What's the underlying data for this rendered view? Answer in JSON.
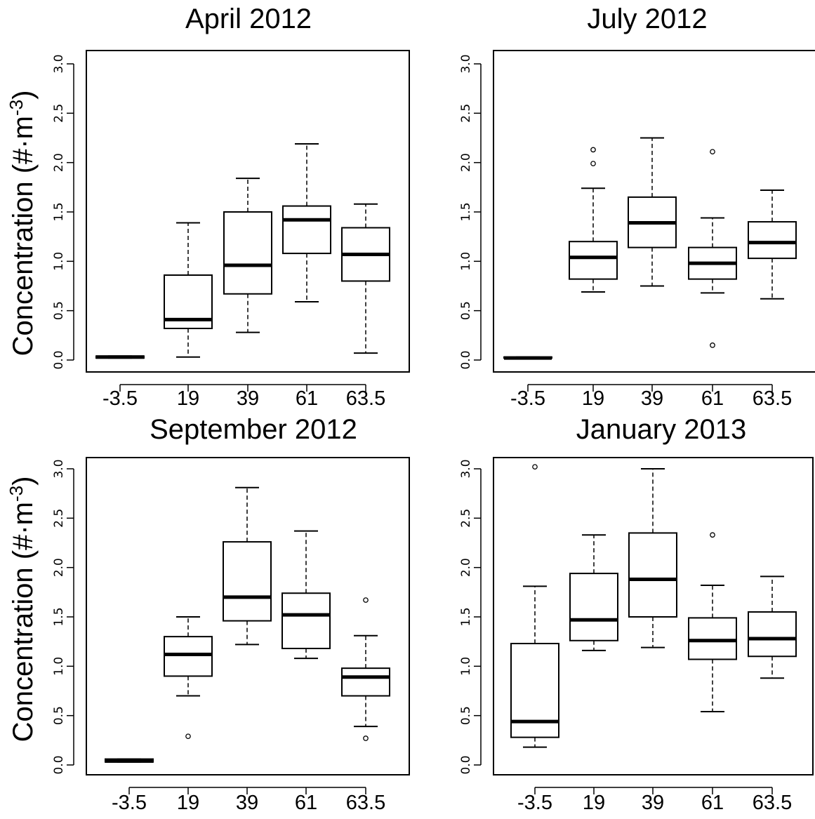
{
  "figure": {
    "ylabel": "Concentration (#·m",
    "ylabel_sup": "-3",
    "ylabel_close": ")"
  },
  "chart_data": [
    {
      "type": "boxplot",
      "title": "April 2012",
      "categories": [
        "-3.5",
        "19",
        "39",
        "61",
        "63.5"
      ],
      "ylim": [
        0,
        3
      ],
      "yticks": [
        "0.0",
        "0.5",
        "1.0",
        "1.5",
        "2.0",
        "2.5",
        "3.0"
      ],
      "boxes": [
        {
          "category": "-3.5",
          "whisker_low": 0.02,
          "q1": 0.02,
          "median": 0.03,
          "q3": 0.04,
          "whisker_high": 0.04,
          "outliers": []
        },
        {
          "category": "19",
          "whisker_low": 0.03,
          "q1": 0.32,
          "median": 0.41,
          "q3": 0.86,
          "whisker_high": 1.39,
          "outliers": []
        },
        {
          "category": "39",
          "whisker_low": 0.28,
          "q1": 0.67,
          "median": 0.96,
          "q3": 1.5,
          "whisker_high": 1.84,
          "outliers": []
        },
        {
          "category": "61",
          "whisker_low": 0.59,
          "q1": 1.08,
          "median": 1.42,
          "q3": 1.56,
          "whisker_high": 2.19,
          "outliers": []
        },
        {
          "category": "63.5",
          "whisker_low": 0.07,
          "q1": 0.8,
          "median": 1.07,
          "q3": 1.34,
          "whisker_high": 1.58,
          "outliers": []
        }
      ]
    },
    {
      "type": "boxplot",
      "title": "July 2012",
      "categories": [
        "-3.5",
        "19",
        "39",
        "61",
        "63.5"
      ],
      "ylim": [
        0,
        3
      ],
      "yticks": [
        "0.0",
        "0.5",
        "1.0",
        "1.5",
        "2.0",
        "2.5",
        "3.0"
      ],
      "boxes": [
        {
          "category": "-3.5",
          "whisker_low": 0.02,
          "q1": 0.02,
          "median": 0.02,
          "q3": 0.03,
          "whisker_high": 0.03,
          "outliers": []
        },
        {
          "category": "19",
          "whisker_low": 0.69,
          "q1": 0.82,
          "median": 1.04,
          "q3": 1.2,
          "whisker_high": 1.74,
          "outliers": [
            1.99,
            2.13
          ]
        },
        {
          "category": "39",
          "whisker_low": 0.75,
          "q1": 1.14,
          "median": 1.39,
          "q3": 1.65,
          "whisker_high": 2.25,
          "outliers": []
        },
        {
          "category": "61",
          "whisker_low": 0.68,
          "q1": 0.82,
          "median": 0.98,
          "q3": 1.14,
          "whisker_high": 1.44,
          "outliers": [
            2.11,
            0.15
          ]
        },
        {
          "category": "63.5",
          "whisker_low": 0.62,
          "q1": 1.03,
          "median": 1.19,
          "q3": 1.4,
          "whisker_high": 1.72,
          "outliers": []
        }
      ]
    },
    {
      "type": "boxplot",
      "title": "September 2012",
      "categories": [
        "-3.5",
        "19",
        "39",
        "61",
        "63.5"
      ],
      "ylim": [
        0,
        3
      ],
      "yticks": [
        "0.0",
        "0.5",
        "1.0",
        "1.5",
        "2.0",
        "2.5",
        "3.0"
      ],
      "boxes": [
        {
          "category": "-3.5",
          "whisker_low": 0.03,
          "q1": 0.03,
          "median": 0.04,
          "q3": 0.06,
          "whisker_high": 0.06,
          "outliers": []
        },
        {
          "category": "19",
          "whisker_low": 0.7,
          "q1": 0.9,
          "median": 1.12,
          "q3": 1.3,
          "whisker_high": 1.5,
          "outliers": [
            0.29
          ]
        },
        {
          "category": "39",
          "whisker_low": 1.22,
          "q1": 1.46,
          "median": 1.7,
          "q3": 2.26,
          "whisker_high": 2.81,
          "outliers": []
        },
        {
          "category": "61",
          "whisker_low": 1.08,
          "q1": 1.18,
          "median": 1.52,
          "q3": 1.74,
          "whisker_high": 2.37,
          "outliers": []
        },
        {
          "category": "63.5",
          "whisker_low": 0.39,
          "q1": 0.7,
          "median": 0.89,
          "q3": 0.98,
          "whisker_high": 1.31,
          "outliers": [
            1.67,
            0.27
          ]
        }
      ]
    },
    {
      "type": "boxplot",
      "title": "January 2013",
      "categories": [
        "-3.5",
        "19",
        "39",
        "61",
        "63.5"
      ],
      "ylim": [
        0,
        3
      ],
      "yticks": [
        "0.0",
        "0.5",
        "1.0",
        "1.5",
        "2.0",
        "2.5",
        "3.0"
      ],
      "boxes": [
        {
          "category": "-3.5",
          "whisker_low": 0.18,
          "q1": 0.28,
          "median": 0.44,
          "q3": 1.23,
          "whisker_high": 1.81,
          "outliers": [
            3.02
          ]
        },
        {
          "category": "19",
          "whisker_low": 1.16,
          "q1": 1.26,
          "median": 1.47,
          "q3": 1.94,
          "whisker_high": 2.33,
          "outliers": []
        },
        {
          "category": "39",
          "whisker_low": 1.19,
          "q1": 1.5,
          "median": 1.88,
          "q3": 2.35,
          "whisker_high": 3.0,
          "outliers": []
        },
        {
          "category": "61",
          "whisker_low": 0.54,
          "q1": 1.07,
          "median": 1.26,
          "q3": 1.49,
          "whisker_high": 1.82,
          "outliers": [
            2.33
          ]
        },
        {
          "category": "63.5",
          "whisker_low": 0.88,
          "q1": 1.1,
          "median": 1.28,
          "q3": 1.55,
          "whisker_high": 1.91,
          "outliers": []
        }
      ]
    }
  ]
}
